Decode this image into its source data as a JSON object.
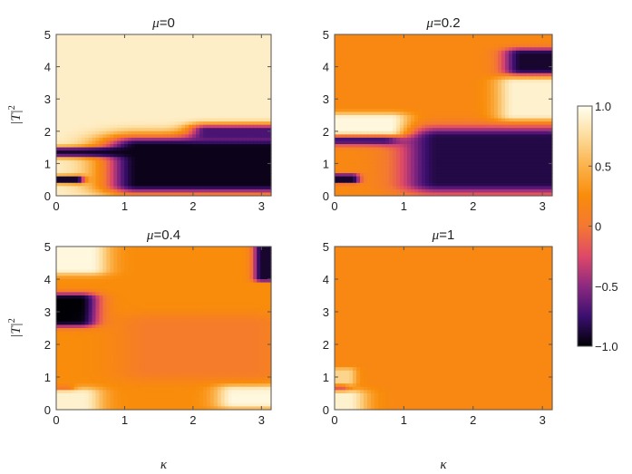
{
  "chart_data": [
    {
      "type": "heatmap",
      "title_prefix": "μ",
      "title_value": "=0",
      "xlabel": "",
      "ylabel": "",
      "xlim": [
        0,
        3.14159
      ],
      "ylim": [
        0,
        5
      ],
      "xticks": [
        "0",
        "1",
        "2",
        "3"
      ],
      "yticks": [
        "0",
        "1",
        "2",
        "3",
        "4",
        "5"
      ],
      "background": 0.88,
      "features": [
        {
          "x": [
            0.0,
            0.3
          ],
          "y": [
            0.45,
            0.55
          ],
          "value": -0.9,
          "decay": "short"
        },
        {
          "x": [
            0.0,
            3.14
          ],
          "y": [
            1.3,
            1.4
          ],
          "value": -0.9,
          "decay": "edge"
        },
        {
          "x": [
            1.2,
            3.14
          ],
          "y": [
            0.35,
            1.55
          ],
          "value": -0.95,
          "decay": "long"
        },
        {
          "x": [
            2.2,
            3.14
          ],
          "y": [
            1.85,
            2.05
          ],
          "value": -0.7,
          "decay": "medium"
        }
      ]
    },
    {
      "type": "heatmap",
      "title_prefix": "μ",
      "title_value": "=0.2",
      "xlabel": "",
      "ylabel": "",
      "xlim": [
        0,
        3.14159
      ],
      "ylim": [
        0,
        5
      ],
      "xticks": [
        "0",
        "1",
        "2",
        "3"
      ],
      "yticks": [
        "0",
        "1",
        "2",
        "3",
        "4",
        "5"
      ],
      "background": 0.2,
      "features": [
        {
          "x": [
            0.0,
            0.7
          ],
          "y": [
            1.75,
            1.95
          ],
          "value": -1.0,
          "decay": "medium"
        },
        {
          "x": [
            0.0,
            0.25
          ],
          "y": [
            0.45,
            0.6
          ],
          "value": -0.9,
          "decay": "short"
        },
        {
          "x": [
            1.5,
            3.14
          ],
          "y": [
            0.4,
            1.8
          ],
          "value": -0.85,
          "decay": "long"
        },
        {
          "x": [
            2.7,
            3.14
          ],
          "y": [
            3.9,
            4.4
          ],
          "value": -0.9,
          "decay": "medium"
        },
        {
          "x": [
            0.0,
            0.8
          ],
          "y": [
            2.0,
            2.4
          ],
          "value": 0.95,
          "decay": "medium"
        },
        {
          "x": [
            2.6,
            3.14
          ],
          "y": [
            2.5,
            3.5
          ],
          "value": 0.9,
          "decay": "medium"
        }
      ]
    },
    {
      "type": "heatmap",
      "title_prefix": "μ",
      "title_value": "=0.4",
      "xlabel": "κ",
      "ylabel": "",
      "xlim": [
        0,
        3.14159
      ],
      "ylim": [
        0,
        5
      ],
      "xticks": [
        "0",
        "1",
        "2",
        "3"
      ],
      "yticks": [
        "0",
        "1",
        "2",
        "3",
        "4",
        "5"
      ],
      "background": 0.25,
      "features": [
        {
          "x": [
            0.0,
            0.35
          ],
          "y": [
            2.7,
            3.4
          ],
          "value": -1.0,
          "decay": "medium"
        },
        {
          "x": [
            0.0,
            0.15
          ],
          "y": [
            0.5,
            0.65
          ],
          "value": -0.8,
          "decay": "short"
        },
        {
          "x": [
            3.0,
            3.14
          ],
          "y": [
            4.0,
            5.0
          ],
          "value": -0.9,
          "decay": "short"
        },
        {
          "x": [
            0.0,
            0.5
          ],
          "y": [
            4.3,
            5.0
          ],
          "value": 0.95,
          "decay": "medium"
        },
        {
          "x": [
            0.0,
            0.4
          ],
          "y": [
            0.0,
            0.5
          ],
          "value": 0.9,
          "decay": "medium"
        },
        {
          "x": [
            2.6,
            3.14
          ],
          "y": [
            0.2,
            0.6
          ],
          "value": 0.95,
          "decay": "medium"
        },
        {
          "x": [
            1.4,
            2.8
          ],
          "y": [
            1.2,
            2.6
          ],
          "value": 0.05,
          "decay": "long"
        }
      ]
    },
    {
      "type": "heatmap",
      "title_prefix": "μ",
      "title_value": "=1",
      "xlabel": "κ",
      "ylabel": "",
      "xlim": [
        0,
        3.14159
      ],
      "ylim": [
        0,
        5
      ],
      "xticks": [
        "0",
        "1",
        "2",
        "3"
      ],
      "yticks": [
        "0",
        "1",
        "2",
        "3",
        "4",
        "5"
      ],
      "background": 0.2,
      "features": [
        {
          "x": [
            0.0,
            0.1
          ],
          "y": [
            0.6,
            0.75
          ],
          "value": -0.6,
          "decay": "short"
        },
        {
          "x": [
            0.0,
            0.2
          ],
          "y": [
            0.0,
            0.45
          ],
          "value": 0.9,
          "decay": "medium"
        },
        {
          "x": [
            0.0,
            0.2
          ],
          "y": [
            0.8,
            1.2
          ],
          "value": 0.7,
          "decay": "short"
        }
      ]
    }
  ],
  "y_axis_label_base": "|T|",
  "y_axis_label_exp": "2",
  "colorbar": {
    "range": [
      -1.0,
      1.0
    ],
    "ticks": [
      "1.0",
      "0.5",
      "0",
      "−0.5",
      "−1.0"
    ],
    "colors": [
      "#000004",
      "#3b0f70",
      "#8c2981",
      "#de4968",
      "#f47832",
      "#f98c0a",
      "#fbb24b",
      "#fddc9c",
      "#fffff0"
    ]
  }
}
